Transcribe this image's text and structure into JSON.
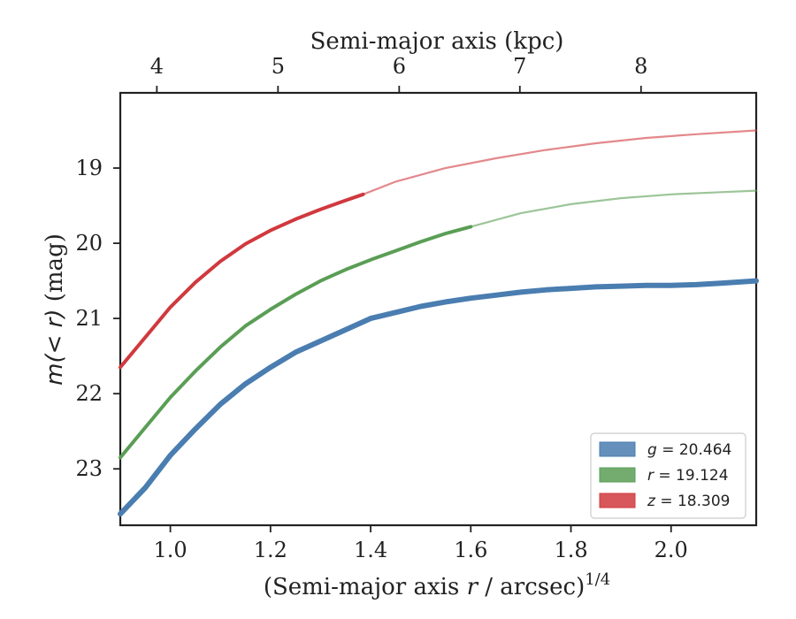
{
  "chart_data": {
    "type": "line",
    "xlabel": "(Semi-major axis r / arcsec)",
    "xlabel_superscript": "1/4",
    "ylabel": "m(< r) (mag)",
    "top_xlabel": "Semi-major axis (kpc)",
    "xlim": [
      0.9,
      2.17
    ],
    "ylim": [
      23.75,
      18.0
    ],
    "x_ticks": [
      "1.0",
      "1.2",
      "1.4",
      "1.6",
      "1.8",
      "2.0"
    ],
    "y_ticks": [
      "19",
      "20",
      "21",
      "22",
      "23"
    ],
    "top_ticks": [
      "4",
      "5",
      "6",
      "7",
      "8"
    ],
    "top_tick_x_positions": [
      0.973,
      1.215,
      1.457,
      1.698,
      1.94
    ],
    "legend_position": "lower-right",
    "series": [
      {
        "name": "g = 20.464",
        "label_var": "g",
        "label_value": "= 20.464",
        "color": "#4a7db0",
        "x": [
          0.9,
          0.95,
          1.0,
          1.05,
          1.1,
          1.15,
          1.2,
          1.25,
          1.3,
          1.35,
          1.4,
          1.45,
          1.5,
          1.55,
          1.6,
          1.65,
          1.7,
          1.75,
          1.8,
          1.85,
          1.9,
          1.95,
          2.0,
          2.05,
          2.1,
          2.17
        ],
        "y": [
          23.6,
          23.25,
          22.82,
          22.47,
          22.14,
          21.87,
          21.65,
          21.45,
          21.3,
          21.15,
          21.0,
          20.92,
          20.84,
          20.78,
          20.73,
          20.69,
          20.65,
          20.62,
          20.6,
          20.58,
          20.57,
          20.56,
          20.56,
          20.55,
          20.53,
          20.5
        ],
        "solid_until_x": 2.17,
        "faded_x": [],
        "faded_y": []
      },
      {
        "name": "r = 19.124",
        "label_var": "r",
        "label_value": "= 19.124",
        "color": "#5a9e55",
        "x": [
          0.9,
          0.95,
          1.0,
          1.05,
          1.1,
          1.15,
          1.2,
          1.25,
          1.3,
          1.35,
          1.4,
          1.45,
          1.5,
          1.55,
          1.6
        ],
        "y": [
          22.85,
          22.45,
          22.05,
          21.7,
          21.38,
          21.1,
          20.88,
          20.68,
          20.5,
          20.35,
          20.22,
          20.1,
          19.98,
          19.87,
          19.78
        ],
        "solid_until_x": 1.6,
        "faded_x": [
          1.6,
          1.7,
          1.8,
          1.9,
          2.0,
          2.1,
          2.17
        ],
        "faded_y": [
          19.78,
          19.6,
          19.48,
          19.4,
          19.35,
          19.32,
          19.3
        ]
      },
      {
        "name": "z = 18.309",
        "label_var": "z",
        "label_value": "= 18.309",
        "color": "#d0393e",
        "x": [
          0.9,
          0.95,
          1.0,
          1.05,
          1.1,
          1.15,
          1.2,
          1.25,
          1.3,
          1.35,
          1.385
        ],
        "y": [
          21.65,
          21.25,
          20.85,
          20.52,
          20.24,
          20.01,
          19.83,
          19.68,
          19.55,
          19.43,
          19.35
        ],
        "solid_until_x": 1.385,
        "faded_x": [
          1.385,
          1.45,
          1.55,
          1.65,
          1.75,
          1.85,
          1.95,
          2.05,
          2.17
        ],
        "faded_y": [
          19.35,
          19.18,
          19.0,
          18.87,
          18.76,
          18.67,
          18.6,
          18.55,
          18.5
        ]
      }
    ]
  }
}
